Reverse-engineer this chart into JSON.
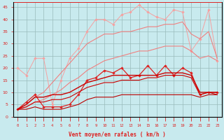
{
  "x": [
    0,
    1,
    2,
    3,
    4,
    5,
    6,
    7,
    8,
    9,
    10,
    11,
    12,
    13,
    14,
    15,
    16,
    17,
    18,
    19,
    20,
    21,
    22,
    23
  ],
  "line_pink_jagged": [
    20,
    17,
    24,
    24,
    5,
    15,
    24,
    28,
    35,
    40,
    40,
    38,
    42,
    43,
    46,
    43,
    41,
    40,
    44,
    43,
    27,
    32,
    44,
    23
  ],
  "line_pink_upper": [
    3,
    5,
    8,
    10,
    14,
    18,
    22,
    26,
    30,
    32,
    34,
    34,
    35,
    35,
    36,
    37,
    37,
    38,
    38,
    39,
    34,
    32,
    35,
    24
  ],
  "line_pink_lower": [
    3,
    4,
    6,
    7,
    9,
    11,
    14,
    16,
    19,
    21,
    23,
    24,
    25,
    26,
    27,
    27,
    28,
    29,
    29,
    29,
    27,
    24,
    25,
    23
  ],
  "line_red_jagged": [
    3,
    6,
    9,
    4,
    4,
    4,
    5,
    9,
    15,
    16,
    19,
    18,
    20,
    16,
    17,
    21,
    17,
    21,
    17,
    20,
    18,
    9,
    10,
    10
  ],
  "line_red_upper": [
    3,
    5,
    8,
    8,
    9,
    9,
    10,
    12,
    14,
    15,
    16,
    17,
    17,
    17,
    17,
    17,
    17,
    18,
    18,
    18,
    17,
    10,
    10,
    10
  ],
  "line_red_mid": [
    3,
    4,
    6,
    6,
    7,
    7,
    8,
    10,
    12,
    13,
    14,
    14,
    15,
    15,
    15,
    16,
    16,
    17,
    17,
    17,
    16,
    9,
    10,
    9
  ],
  "line_red_lower": [
    3,
    3,
    4,
    3,
    3,
    3,
    4,
    5,
    7,
    8,
    8,
    8,
    9,
    9,
    9,
    9,
    9,
    9,
    9,
    9,
    9,
    8,
    9,
    9
  ],
  "color_light_pink": "#f5a0a0",
  "color_mid_pink": "#f08080",
  "color_red_jagged": "#dd2222",
  "color_red_lines": "#cc0000",
  "color_red_lower": "#bb0000",
  "bg_color": "#c8eaee",
  "grid_color": "#99bbbb",
  "xlabel": "Vent moyen/en rafales ( km/h )",
  "ylim": [
    0,
    47
  ],
  "xlim": [
    -0.5,
    23.5
  ],
  "yticks": [
    0,
    5,
    10,
    15,
    20,
    25,
    30,
    35,
    40,
    45
  ]
}
